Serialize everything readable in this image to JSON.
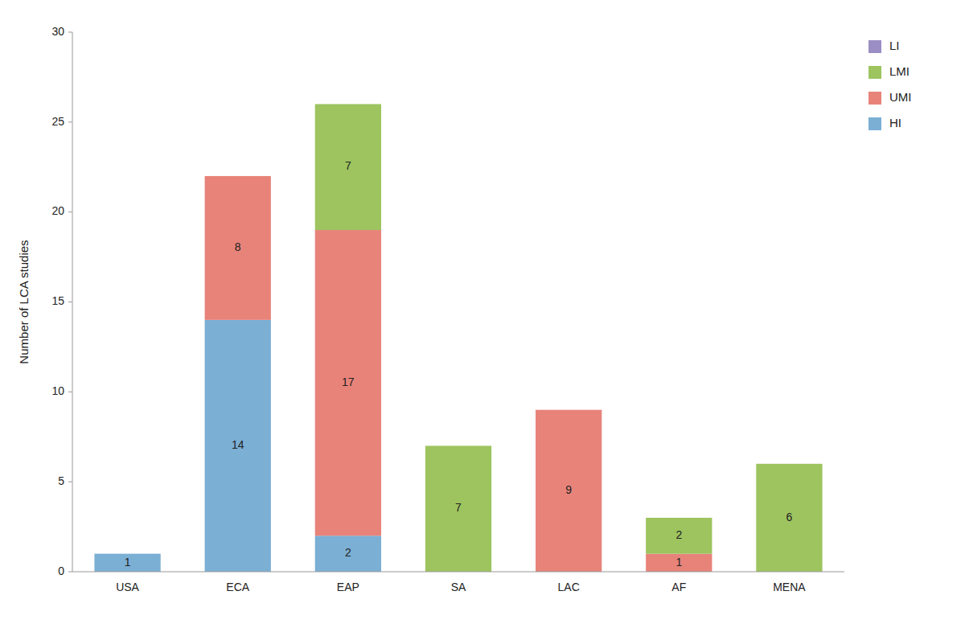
{
  "chart_data": {
    "type": "bar",
    "stacked": true,
    "data_labels": true,
    "grid": false,
    "legend": "upper right",
    "ylabel": "Number of LCA studies",
    "categories": [
      "USA",
      "ECA",
      "EAP",
      "SA",
      "LAC",
      "AF",
      "MENA"
    ],
    "series": [
      {
        "name": "HI",
        "color": "#7BAFD4",
        "values": [
          1,
          14,
          2,
          0,
          0,
          0,
          0
        ]
      },
      {
        "name": "UMI",
        "color": "#E8837A",
        "values": [
          0,
          8,
          17,
          0,
          9,
          1,
          0
        ]
      },
      {
        "name": "LMI",
        "color": "#9DC45F",
        "values": [
          0,
          0,
          7,
          7,
          0,
          2,
          6
        ]
      },
      {
        "name": "LI",
        "color": "#9B8EC4",
        "values": [
          0,
          0,
          0,
          0,
          0,
          0,
          0
        ]
      }
    ],
    "ylim": [
      0,
      30
    ],
    "yticks": [
      0,
      5,
      10,
      15,
      20,
      25,
      30
    ]
  }
}
